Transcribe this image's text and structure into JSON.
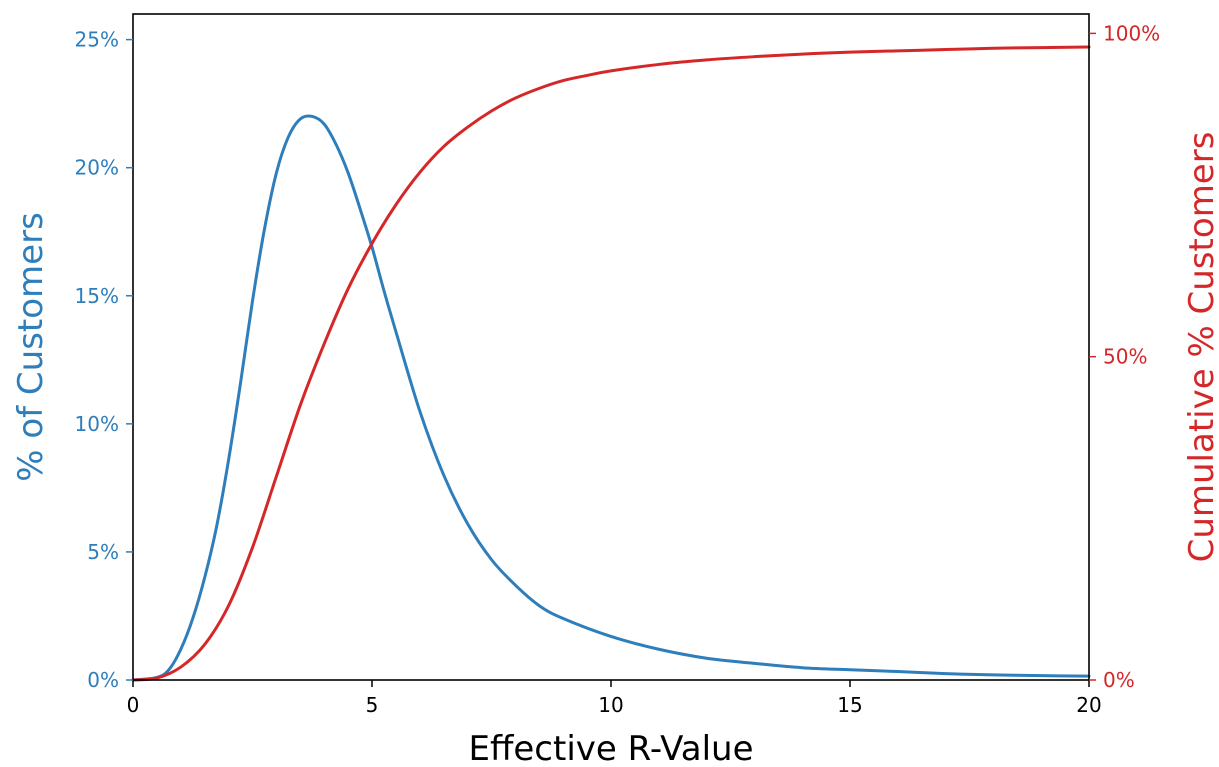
{
  "chart_data": {
    "type": "line",
    "title": "",
    "xlabel": "Effective R-Value",
    "ylabel": "% of Customers",
    "y2label": "Cumulative % Customers",
    "xlim": [
      0,
      20
    ],
    "ylim": [
      0,
      26
    ],
    "y2lim": [
      0,
      103
    ],
    "grid": false,
    "x_ticks": [
      0,
      5,
      10,
      15,
      20
    ],
    "x_tick_labels": [
      "0",
      "5",
      "10",
      "15",
      "20"
    ],
    "y_ticks": [
      0,
      5,
      10,
      15,
      20,
      25
    ],
    "y_tick_labels": [
      "0%",
      "5%",
      "10%",
      "15%",
      "20%",
      "25%"
    ],
    "y2_ticks": [
      0,
      50,
      100
    ],
    "y2_tick_labels": [
      "0%",
      "50%",
      "100%"
    ],
    "colors": {
      "left": "#2e7ebc",
      "right": "#d62728",
      "axis": "#000000"
    },
    "series": [
      {
        "axis": "left",
        "color": "#2e7ebc",
        "x": [
          0,
          0.5,
          0.75,
          1,
          1.25,
          1.5,
          1.75,
          2,
          2.25,
          2.5,
          2.75,
          3,
          3.25,
          3.5,
          3.75,
          4,
          4.25,
          4.5,
          4.75,
          5,
          5.25,
          5.5,
          6,
          6.5,
          7,
          7.5,
          8,
          8.5,
          9,
          10,
          11,
          12,
          13,
          14,
          15,
          16,
          17,
          18,
          19,
          20
        ],
        "y": [
          0,
          0.1,
          0.4,
          1.2,
          2.4,
          4.0,
          6.0,
          8.6,
          11.6,
          14.8,
          17.6,
          19.8,
          21.2,
          21.9,
          22.0,
          21.7,
          20.9,
          19.8,
          18.4,
          16.9,
          15.2,
          13.6,
          10.5,
          8.0,
          6.1,
          4.7,
          3.7,
          2.9,
          2.4,
          1.7,
          1.2,
          0.85,
          0.65,
          0.48,
          0.4,
          0.33,
          0.25,
          0.2,
          0.17,
          0.15
        ]
      },
      {
        "axis": "right",
        "color": "#d62728",
        "x": [
          0,
          0.5,
          1,
          1.5,
          2,
          2.5,
          3,
          3.5,
          4,
          4.5,
          5,
          5.5,
          6,
          6.5,
          7,
          7.5,
          8,
          8.5,
          9,
          9.5,
          10,
          11,
          12,
          13,
          14,
          15,
          16,
          17,
          18,
          19,
          20
        ],
        "y": [
          0,
          0.3,
          2.0,
          5.5,
          11.5,
          20.5,
          31.5,
          42.5,
          52.0,
          60.5,
          67.5,
          73.5,
          78.5,
          82.5,
          85.5,
          88.0,
          90.0,
          91.5,
          92.7,
          93.5,
          94.2,
          95.2,
          95.9,
          96.4,
          96.8,
          97.1,
          97.3,
          97.5,
          97.7,
          97.8,
          97.9
        ]
      }
    ]
  }
}
